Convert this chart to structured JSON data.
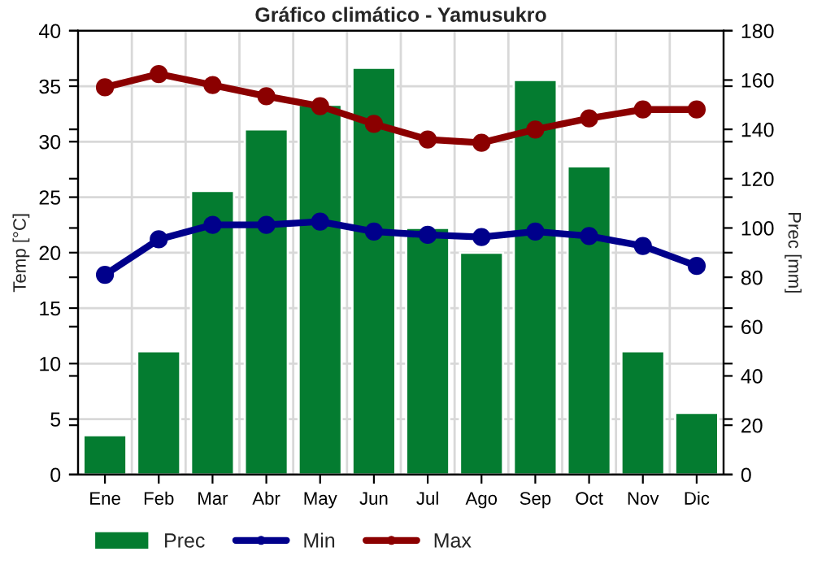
{
  "chart_data": {
    "type": "bar",
    "title": "Gráfico climático - Yamusukro",
    "ylabel": "Temp [°C]",
    "y2label": "Prec [mm]",
    "categories": [
      "Ene",
      "Feb",
      "Mar",
      "Abr",
      "May",
      "Jun",
      "Jul",
      "Ago",
      "Sep",
      "Oct",
      "Nov",
      "Dic"
    ],
    "series": [
      {
        "name": "Prec",
        "axis": "y2",
        "color": "#047c30",
        "values": [
          16,
          50,
          115,
          140,
          150,
          165,
          100,
          90,
          160,
          125,
          50,
          25
        ]
      },
      {
        "name": "Min",
        "type": "line",
        "axis": "y",
        "color": "#00008b",
        "marker": "circle",
        "values": [
          18.0,
          21.2,
          22.5,
          22.5,
          22.8,
          21.9,
          21.6,
          21.4,
          21.9,
          21.5,
          20.6,
          18.8
        ]
      },
      {
        "name": "Max",
        "type": "line",
        "axis": "y",
        "color": "#8b0000",
        "marker": "circle",
        "values": [
          34.9,
          36.1,
          35.1,
          34.1,
          33.2,
          31.6,
          30.2,
          29.9,
          31.1,
          32.1,
          32.9,
          32.9
        ]
      }
    ],
    "ylim": [
      0,
      40
    ],
    "yticks": [
      0,
      5,
      10,
      15,
      20,
      25,
      30,
      35,
      40
    ],
    "y2lim": [
      0,
      180
    ],
    "y2ticks": [
      0,
      20,
      40,
      60,
      80,
      100,
      120,
      140,
      160,
      180
    ],
    "grid": true,
    "legend": "bottom"
  }
}
